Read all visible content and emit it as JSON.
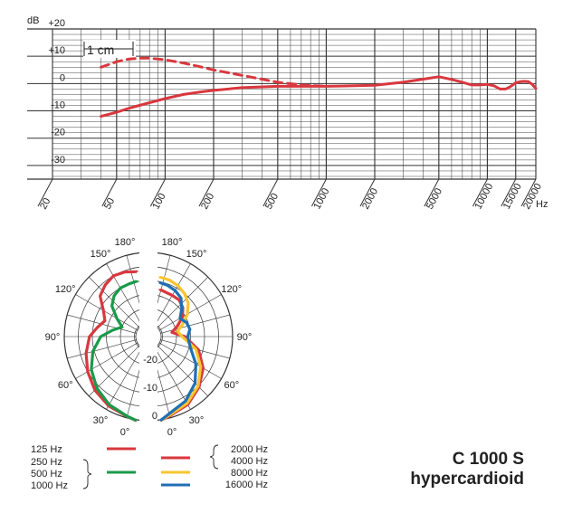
{
  "product": {
    "model": "C 1000 S",
    "pattern": "hypercardioid"
  },
  "colors": {
    "red": "#d8383f",
    "green": "#1a9a4a",
    "yellow": "#f7c532",
    "blue": "#1f6fb4",
    "grid": "#333333"
  },
  "chart_data": [
    {
      "type": "line",
      "x_scale": "log",
      "xlim": [
        20,
        20000
      ],
      "ylim": [
        -35,
        20
      ],
      "yunit": "dB",
      "xunit": "Hz",
      "xticks": [
        20,
        50,
        100,
        200,
        500,
        1000,
        2000,
        5000,
        10000,
        15000,
        20000
      ],
      "xtick_labels": [
        "20",
        "50",
        "100",
        "200",
        "500",
        "1000",
        "2000",
        "5000",
        "10000",
        "15000",
        "20000"
      ],
      "yticks": [
        20,
        10,
        0,
        -10,
        -20,
        -30
      ],
      "ytick_labels": [
        "+20",
        "+10",
        "0",
        "-10",
        "-20",
        "-30"
      ],
      "annotation": "1 cm",
      "grid": true,
      "series": [
        {
          "style": "solid",
          "color": "#d8383f",
          "x": [
            40,
            50,
            60,
            80,
            100,
            130,
            170,
            200,
            300,
            500,
            700,
            1000,
            1500,
            2000,
            3000,
            4000,
            5000,
            6000,
            7000,
            8000,
            9000,
            10000,
            11000,
            12000,
            13000,
            14000,
            15000,
            16000,
            17000,
            18000,
            19000,
            20000
          ],
          "y": [
            -12,
            -10.5,
            -9,
            -7,
            -5.5,
            -4,
            -3,
            -2.5,
            -1.5,
            -1,
            -1,
            -1,
            -0.8,
            -0.6,
            0.5,
            1.6,
            2.5,
            1.5,
            0.5,
            -0.5,
            -0.5,
            -0.3,
            -0.8,
            -2,
            -2,
            -1,
            0.3,
            0.7,
            0.8,
            0.7,
            -0.3,
            -1.8
          ]
        },
        {
          "style": "dashed",
          "color": "#d8383f",
          "x": [
            40,
            50,
            60,
            70,
            80,
            100,
            130,
            170,
            200,
            300,
            500,
            700,
            1000
          ],
          "y": [
            6,
            8,
            9,
            9.3,
            9.3,
            8.7,
            7.5,
            6,
            5,
            3,
            0.5,
            -0.5,
            -1
          ]
        }
      ]
    },
    {
      "type": "polar",
      "rlim": [
        -30,
        0
      ],
      "rticks": [
        0,
        -10,
        -20
      ],
      "rtick_labels": [
        "0",
        "-10",
        "-20"
      ],
      "angle_labels": [
        "0°",
        "30°",
        "60°",
        "90°",
        "120°",
        "150°",
        "180°"
      ],
      "legend": [
        {
          "labels": [
            "125 Hz"
          ],
          "color": "#d8383f"
        },
        {
          "labels": [
            "250 Hz",
            "500 Hz",
            "1000 Hz"
          ],
          "color": "#1a9a4a"
        },
        {
          "labels": [
            "2000 Hz",
            "4000 Hz"
          ],
          "color": "#d8383f"
        },
        {
          "labels": [
            "8000 Hz"
          ],
          "color": "#f7c532"
        },
        {
          "labels": [
            "16000 Hz"
          ],
          "color": "#1f6fb4"
        }
      ],
      "left_series": [
        {
          "name": "125 Hz",
          "color": "#d8383f",
          "angles": [
            0,
            15,
            30,
            45,
            60,
            75,
            90,
            100,
            110,
            120,
            130,
            140,
            150,
            160,
            170,
            180
          ],
          "db": [
            0,
            -0.5,
            -1.5,
            -3,
            -5,
            -7,
            -9,
            -11.5,
            -13.5,
            -11.5,
            -7.5,
            -6,
            -5,
            -5.5,
            -6.5,
            -7
          ]
        },
        {
          "name": "250 Hz / 500 Hz / 1000 Hz",
          "color": "#1a9a4a",
          "angles": [
            0,
            15,
            30,
            45,
            60,
            75,
            90,
            100,
            110,
            120,
            130,
            140,
            150,
            160,
            170,
            180
          ],
          "db": [
            0,
            -0.6,
            -2,
            -4,
            -6.5,
            -9.5,
            -13,
            -17,
            -20,
            -17,
            -13,
            -11,
            -10,
            -10,
            -10,
            -10
          ]
        }
      ],
      "right_series": [
        {
          "name": "2000 Hz / 4000 Hz",
          "color": "#d8383f",
          "angles": [
            0,
            15,
            30,
            45,
            60,
            75,
            90,
            100,
            110,
            120,
            130,
            140,
            150,
            160,
            170,
            180
          ],
          "db": [
            0,
            -0.7,
            -2,
            -4.5,
            -7.5,
            -11.5,
            -17,
            -21.5,
            -19,
            -16,
            -14,
            -13,
            -13,
            -13,
            -13,
            -13
          ]
        },
        {
          "name": "8000 Hz",
          "color": "#f7c532",
          "angles": [
            0,
            15,
            30,
            45,
            60,
            75,
            90,
            100,
            110,
            120,
            130,
            140,
            150,
            160,
            170,
            180
          ],
          "db": [
            0,
            -1,
            -2.5,
            -5,
            -8.5,
            -12.5,
            -18,
            -19.5,
            -17,
            -14,
            -11.5,
            -10,
            -9,
            -8.5,
            -8.5,
            -8.5
          ]
        },
        {
          "name": "16000 Hz",
          "color": "#1f6fb4",
          "angles": [
            0,
            15,
            30,
            45,
            60,
            75,
            90,
            100,
            110,
            120,
            130,
            140,
            150,
            160,
            170,
            180
          ],
          "db": [
            0,
            -1.5,
            -3.5,
            -6.5,
            -10.5,
            -14.5,
            -16,
            -15,
            -15.5,
            -17,
            -14.5,
            -12,
            -11,
            -10.5,
            -10.5,
            -10.5
          ]
        }
      ]
    }
  ]
}
